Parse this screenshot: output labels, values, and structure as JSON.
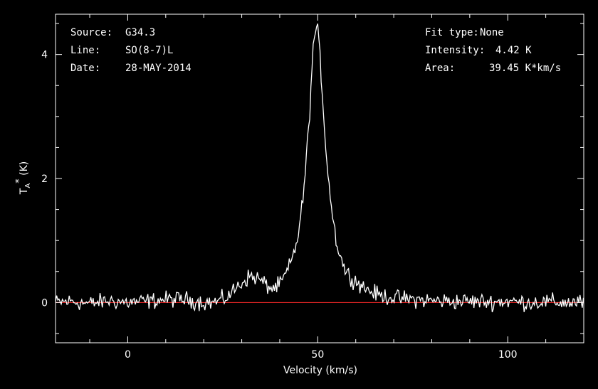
{
  "info": {
    "source_label": "Source:",
    "source_value": "G34.3",
    "line_label": "Line:",
    "line_value": "SO(8-7)L",
    "date_label": "Date:",
    "date_value": "28-MAY-2014",
    "fit_label": "Fit type:",
    "fit_value": "None",
    "intensity_label": "Intensity:",
    "intensity_value": "4.42 K",
    "area_label": "Area:",
    "area_value": "39.45 K*km/s"
  },
  "chart_data": {
    "type": "line",
    "xlabel": "Velocity (km/s)",
    "ylabel_main": "T",
    "ylabel_sub": "A",
    "ylabel_sup": "*",
    "ylabel_unit": " (K)",
    "xlim": [
      -19,
      120
    ],
    "ylim": [
      -0.65,
      4.65
    ],
    "x_ticks": [
      0,
      50,
      100
    ],
    "x_tick_labels": [
      "0",
      "50",
      "100"
    ],
    "y_ticks": [
      0,
      2,
      4
    ],
    "y_tick_labels": [
      "0",
      "2",
      "4"
    ],
    "baseline": 0,
    "colors": {
      "background": "#000000",
      "axes": "#ffffff",
      "series": "#ffffff",
      "baseline": "#ff2a2a"
    },
    "series": [
      {
        "x": [
          -19,
          -15,
          -10,
          -5,
          0,
          5,
          10,
          15,
          20,
          22,
          24,
          26,
          28,
          30,
          32,
          34,
          36,
          38,
          40,
          42,
          43,
          44,
          45,
          46,
          47,
          48,
          48.5,
          49,
          49.5,
          50,
          50.5,
          51,
          51.5,
          52,
          53,
          54,
          55,
          56,
          57,
          58,
          60,
          62,
          64,
          66,
          68,
          70,
          72,
          75,
          80,
          85,
          90,
          95,
          100,
          105,
          110,
          115,
          120
        ],
        "y": [
          0.0,
          0.02,
          -0.02,
          0.03,
          0.0,
          0.02,
          0.05,
          0.05,
          0.0,
          0.0,
          0.02,
          0.08,
          0.2,
          0.32,
          0.42,
          0.4,
          0.3,
          0.22,
          0.28,
          0.5,
          0.65,
          0.85,
          1.15,
          1.6,
          2.3,
          3.2,
          3.8,
          4.25,
          4.42,
          4.35,
          4.05,
          3.6,
          3.1,
          2.6,
          1.9,
          1.35,
          0.95,
          0.75,
          0.55,
          0.45,
          0.35,
          0.25,
          0.18,
          0.12,
          0.1,
          0.08,
          0.06,
          0.05,
          0.03,
          0.02,
          0.02,
          0.01,
          0.02,
          0.0,
          0.01,
          0.0,
          0.0
        ]
      }
    ]
  }
}
